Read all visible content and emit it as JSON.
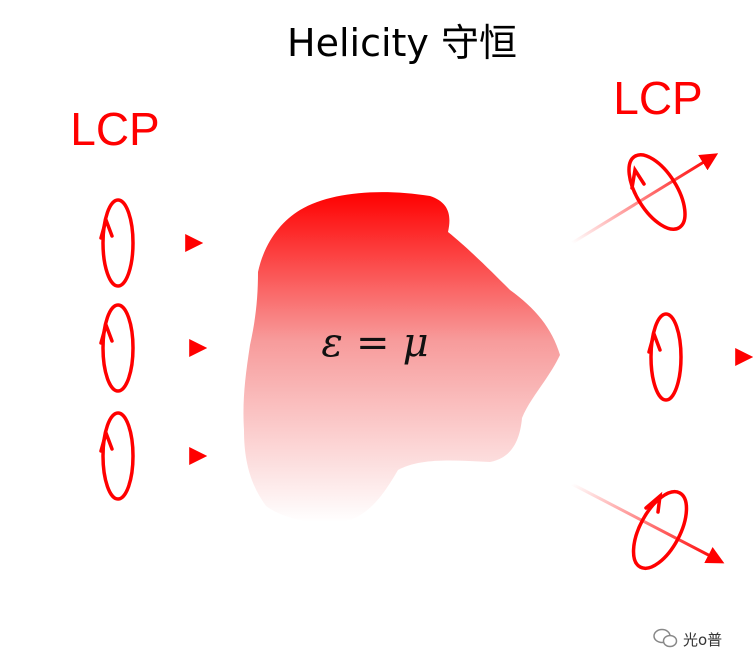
{
  "title": "Helicity 守恒",
  "left_label": "LCP",
  "right_label": "LCP",
  "equation": {
    "lhs": "ε",
    "op": "=",
    "rhs": "μ"
  },
  "watermark": "光o普",
  "colors": {
    "accent": "#ff0000",
    "text": "#000000"
  }
}
